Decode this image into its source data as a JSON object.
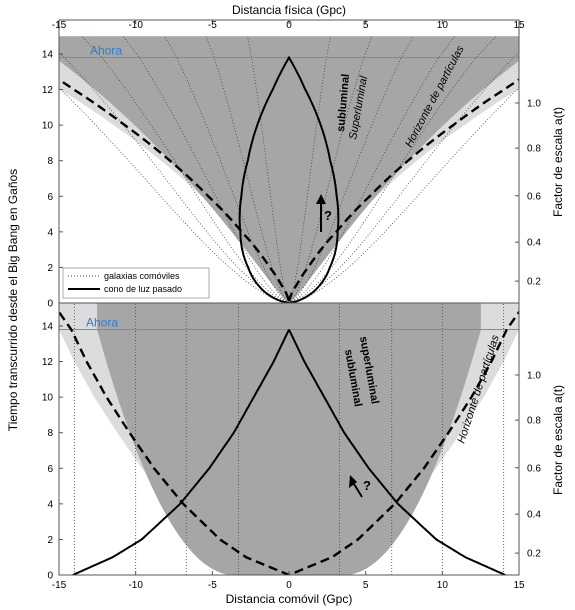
{
  "chart_data": [
    {
      "type": "line",
      "panel": "top",
      "x_axis_top_label": "Distancia física (Gpc)",
      "ylabel_left": "Tiempo transcurrido desde el Big Bang en Gaños",
      "ylabel_right": "Factor de escala a(t)",
      "xlim": [
        -15,
        15
      ],
      "ylim": [
        0,
        15
      ],
      "x_ticks": [
        "-15",
        "-10",
        "-5",
        "0",
        "5",
        "10",
        "15"
      ],
      "y_ticks": [
        "0",
        "2",
        "4",
        "6",
        "8",
        "10",
        "12",
        "14"
      ],
      "scale_factor_ticks": [
        "0.2",
        "0.4",
        "0.6",
        "0.8",
        "1.0"
      ],
      "now_label": "Ahora",
      "now_time": 13.8,
      "annotations": {
        "subluminal": "subluminal",
        "superluminal": "Superluminal",
        "particle_horizon": "Horizonte de partículas",
        "question": "?"
      },
      "legend": {
        "placement": "bottom-left",
        "comoving_galaxies": "galaxias comóviles",
        "past_light_cone": "cono de luz pasado"
      },
      "series": [
        {
          "name": "galaxias comóviles",
          "style": "dotted",
          "comoving_distances": [
            -14,
            -12,
            -10,
            -8,
            -6,
            -4,
            -2,
            2,
            4,
            6,
            8,
            10,
            12,
            14
          ]
        },
        {
          "name": "cono de luz pasado",
          "style": "solid",
          "t": [
            0,
            2,
            4,
            6,
            8,
            10,
            12,
            13.8
          ],
          "x": [
            0,
            1.7,
            2.1,
            2.0,
            1.8,
            1.3,
            0.7,
            0
          ]
        },
        {
          "name": "Horizonte de partículas",
          "style": "dashed",
          "t": [
            0,
            2,
            4,
            6,
            8,
            10,
            12,
            13.8
          ],
          "x": [
            0,
            5.0,
            7.6,
            9.5,
            11.1,
            12.5,
            13.8,
            14.8
          ]
        }
      ]
    },
    {
      "type": "line",
      "panel": "bottom",
      "xlabel": "Distancia comóvil (Gpc)",
      "xlim": [
        -15,
        15
      ],
      "ylim": [
        0,
        15
      ],
      "x_ticks": [
        "-15",
        "-10",
        "-5",
        "0",
        "5",
        "10",
        "15"
      ],
      "y_ticks": [
        "0",
        "2",
        "4",
        "6",
        "8",
        "10",
        "12",
        "14"
      ],
      "scale_factor_ticks": [
        "0.2",
        "0.4",
        "0.6",
        "0.8",
        "1.0"
      ],
      "now_label": "Ahora",
      "now_time": 13.8,
      "annotations": {
        "superluminal": "superluminal",
        "subluminal": "subluminal",
        "particle_horizon": "Horizonte de partículas",
        "question": "?"
      },
      "series": [
        {
          "name": "galaxias comóviles",
          "style": "dotted",
          "comoving_distances": [
            -14,
            -10,
            -6.7,
            -3.3,
            3.3,
            6.7,
            10,
            14
          ]
        },
        {
          "name": "cono de luz pasado",
          "style": "solid",
          "t": [
            0,
            1,
            2,
            4,
            6,
            8,
            10,
            12,
            13.8
          ],
          "x": [
            14.1,
            11.5,
            9.6,
            7.1,
            5.2,
            3.6,
            2.3,
            1.0,
            0
          ]
        },
        {
          "name": "Horizonte de partículas",
          "style": "dashed",
          "t": [
            0,
            1,
            2,
            4,
            6,
            8,
            10,
            12,
            13.8
          ],
          "x": [
            0,
            2.8,
            4.5,
            6.9,
            8.8,
            10.4,
            11.9,
            13.2,
            14.2
          ]
        }
      ]
    }
  ]
}
